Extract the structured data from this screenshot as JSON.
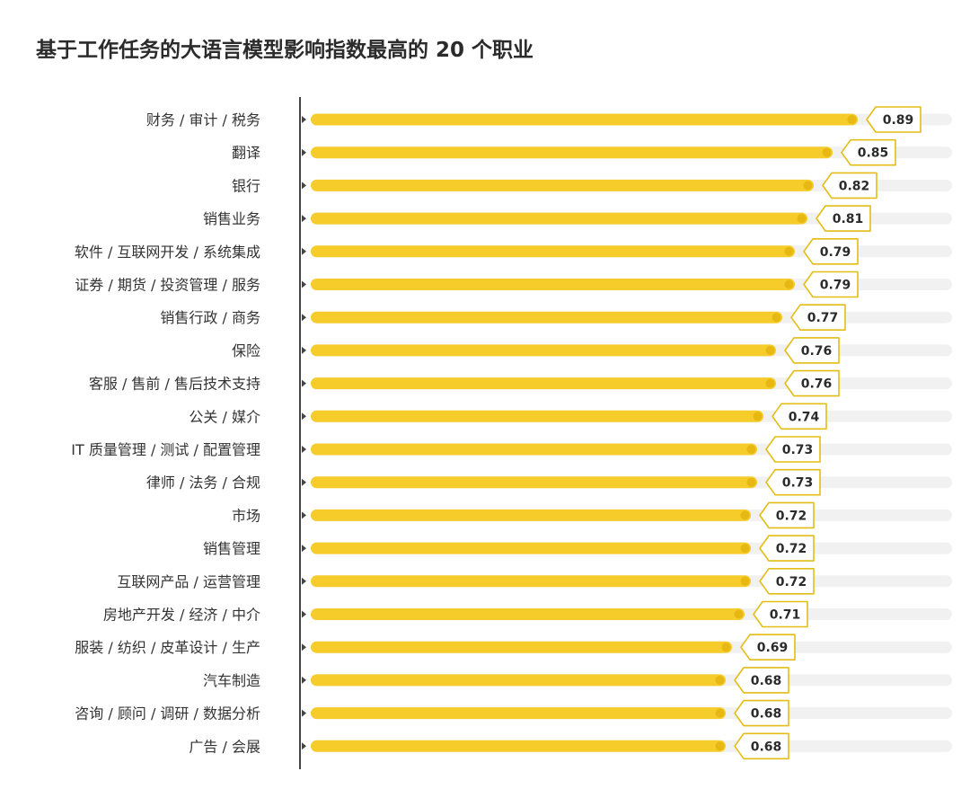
{
  "chart_data": {
    "type": "bar",
    "orientation": "horizontal",
    "title": "基于工作任务的大语言模型影响指数最高的 20 个职业",
    "categories": [
      "财务 / 审计 / 税务",
      "翻译",
      "银行",
      "销售业务",
      "软件 / 互联网开发 / 系统集成",
      "证券 / 期货 / 投资管理 / 服务",
      "销售行政 / 商务",
      "保险",
      "客服 / 售前 / 售后技术支持",
      "公关 / 媒介",
      "IT 质量管理 / 测试 / 配置管理",
      "律师 / 法务 / 合规",
      "市场",
      "销售管理",
      "互联网产品 / 运营管理",
      "房地产开发 / 经济 / 中介",
      "服装 / 纺织 / 皮革设计 / 生产",
      "汽车制造",
      "咨询 / 顾问 / 调研 / 数据分析",
      "广告 / 会展"
    ],
    "values": [
      0.89,
      0.85,
      0.82,
      0.81,
      0.79,
      0.79,
      0.77,
      0.76,
      0.76,
      0.74,
      0.73,
      0.73,
      0.72,
      0.72,
      0.72,
      0.71,
      0.69,
      0.68,
      0.68,
      0.68
    ],
    "value_labels": [
      "0.89",
      "0.85",
      "0.82",
      "0.81",
      "0.79",
      "0.79",
      "0.77",
      "0.76",
      "0.76",
      "0.74",
      "0.73",
      "0.73",
      "0.72",
      "0.72",
      "0.72",
      "0.71",
      "0.69",
      "0.68",
      "0.68",
      "0.68"
    ],
    "xlim": [
      0,
      1.05
    ],
    "grid": false,
    "legend": "none",
    "colors": {
      "bar": "#f5cc2a",
      "bar_end": "#e7b812",
      "track": "#f1f1f1",
      "axis": "#444444",
      "label_border": "#e3bd16"
    }
  }
}
